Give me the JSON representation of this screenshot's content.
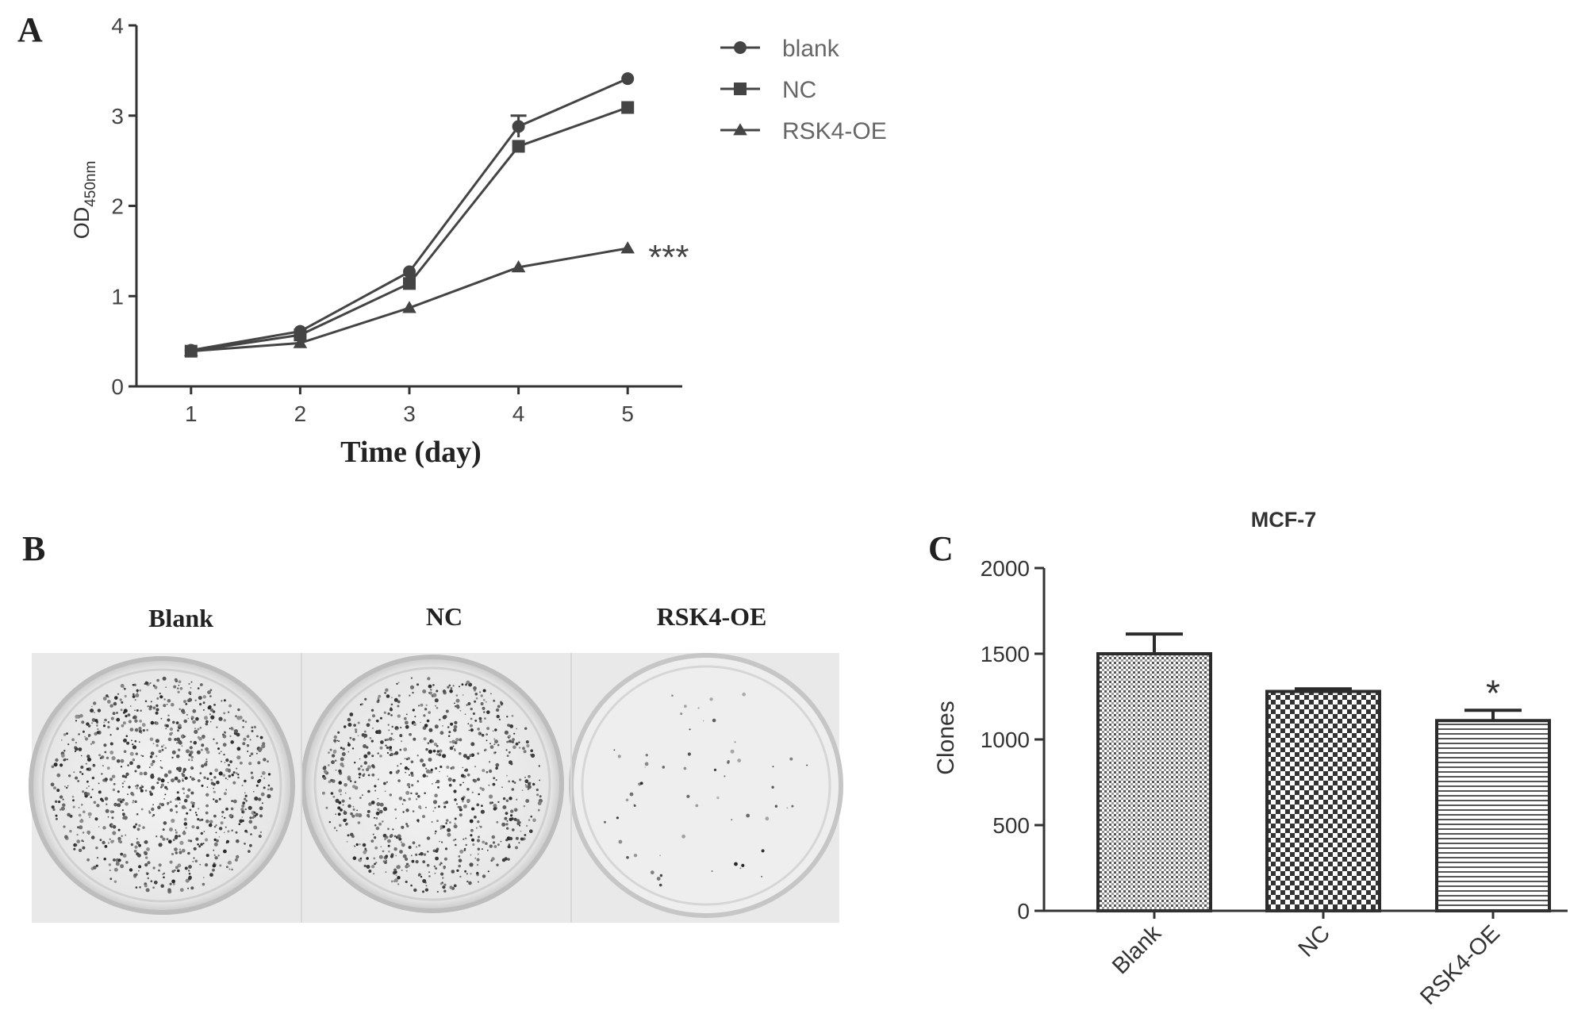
{
  "colors": {
    "axis": "#333333",
    "series": "#444444",
    "text": "#222222",
    "plate_bg": "#e8e8e8"
  },
  "panels": {
    "a": {
      "label": "A",
      "ylabel_main": "OD",
      "ylabel_sub": "450nm",
      "xlabel": "Time (day)",
      "significance": "***",
      "legend": [
        {
          "name": "blank",
          "marker": "circle"
        },
        {
          "name": "NC",
          "marker": "square"
        },
        {
          "name": "RSK4-OE",
          "marker": "triangle"
        }
      ]
    },
    "b": {
      "label": "B",
      "plate_labels": [
        "Blank",
        "NC",
        "RSK4-OE"
      ],
      "colony_density": [
        "high",
        "high",
        "low"
      ]
    },
    "c": {
      "label": "C",
      "title": "MCF-7",
      "ylabel": "Clones",
      "significance": "*",
      "bar_patterns": [
        "dot-grid",
        "checkerboard",
        "horizontal-lines"
      ]
    }
  },
  "chart_data": [
    {
      "type": "line",
      "panel": "A",
      "x": [
        1,
        2,
        3,
        4,
        5
      ],
      "xlim": [
        0.5,
        5.5
      ],
      "ylim": [
        0,
        4
      ],
      "xticks": [
        1,
        2,
        3,
        4,
        5
      ],
      "yticks": [
        0,
        1,
        2,
        3,
        4
      ],
      "xlabel": "Time (day)",
      "ylabel": "OD450nm",
      "legend_position": "top-right",
      "grid": false,
      "series": [
        {
          "name": "blank",
          "marker": "circle",
          "values": [
            0.4,
            0.61,
            1.27,
            2.88,
            3.41
          ],
          "errors": [
            0.02,
            0.02,
            0.03,
            0.12,
            0.03
          ]
        },
        {
          "name": "NC",
          "marker": "square",
          "values": [
            0.39,
            0.57,
            1.14,
            2.66,
            3.09
          ],
          "errors": [
            0.02,
            0.02,
            0.03,
            0.04,
            0.03
          ]
        },
        {
          "name": "RSK4-OE",
          "marker": "triangle",
          "values": [
            0.39,
            0.48,
            0.87,
            1.32,
            1.53
          ],
          "errors": [
            0.01,
            0.02,
            0.02,
            0.02,
            0.02
          ]
        }
      ],
      "annotations": [
        {
          "text": "***",
          "series": "RSK4-OE",
          "x": 5
        }
      ]
    },
    {
      "type": "bar",
      "panel": "C",
      "title": "MCF-7",
      "categories": [
        "Blank",
        "NC",
        "RSK4-OE"
      ],
      "values": [
        1500,
        1280,
        1110
      ],
      "errors": [
        115,
        15,
        60
      ],
      "ylim": [
        0,
        2000
      ],
      "yticks": [
        0,
        500,
        1000,
        1500,
        2000
      ],
      "ylabel": "Clones",
      "xlabel": "",
      "grid": false,
      "annotations": [
        {
          "text": "*",
          "category": "RSK4-OE"
        }
      ]
    }
  ]
}
